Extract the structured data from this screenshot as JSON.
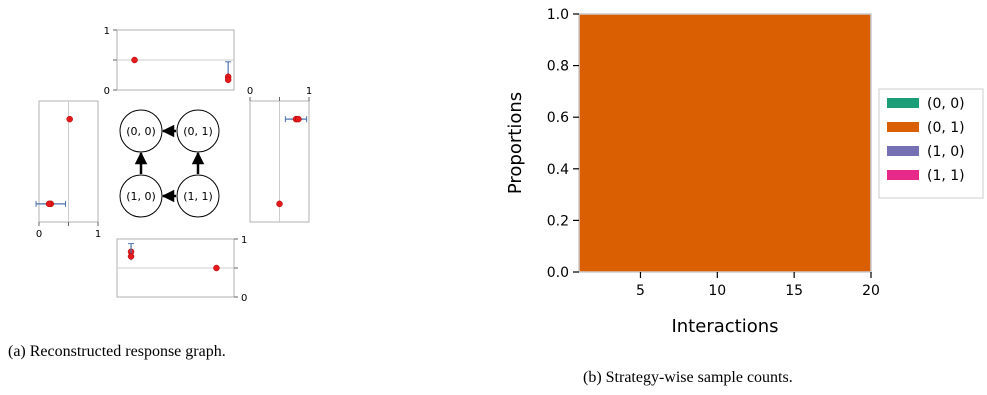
{
  "captions": {
    "a": "(a) Reconstructed response graph.",
    "b": "(b) Strategy-wise sample counts."
  },
  "chart_data": [
    {
      "type": "diagram",
      "nodes": [
        {
          "id": "n00",
          "label": "(0, 0)"
        },
        {
          "id": "n01",
          "label": "(0, 1)"
        },
        {
          "id": "n10",
          "label": "(1, 0)"
        },
        {
          "id": "n11",
          "label": "(1, 1)"
        }
      ],
      "edges": [
        {
          "from": "n01",
          "to": "n00"
        },
        {
          "from": "n10",
          "to": "n00"
        },
        {
          "from": "n11",
          "to": "n10"
        },
        {
          "from": "n11",
          "to": "n01"
        }
      ],
      "mini_plots": {
        "top": {
          "ylim": [
            0,
            1
          ],
          "yticks": [
            "0",
            "1"
          ],
          "ref_line": 0.5,
          "points": [
            {
              "x": 0.15,
              "y": 0.5,
              "err": 0
            },
            {
              "x": 0.95,
              "y": 0.22,
              "err": 0.25
            },
            {
              "x": 0.95,
              "y": 0.17,
              "err": 0
            }
          ]
        },
        "right": {
          "xlim": [
            0,
            1
          ],
          "xticks": [
            "0",
            "1"
          ],
          "ref_line": 0.5,
          "points": [
            {
              "y": 0.85,
              "x": 0.78,
              "err": 0.18
            },
            {
              "y": 0.85,
              "x": 0.82,
              "err": 0
            },
            {
              "y": 0.15,
              "x": 0.5,
              "err": 0
            }
          ]
        },
        "left": {
          "xlim": [
            0,
            1
          ],
          "xticks": [
            "0",
            "1"
          ],
          "ref_line": 0.5,
          "points": [
            {
              "y": 0.85,
              "x": 0.52,
              "err": 0
            },
            {
              "y": 0.15,
              "x": 0.2,
              "err": 0.25
            },
            {
              "y": 0.15,
              "x": 0.17,
              "err": 0
            }
          ]
        },
        "bottom": {
          "ylim": [
            0,
            1
          ],
          "yticks": [
            "0",
            "1"
          ],
          "ref_line": 0.5,
          "points": [
            {
              "x": 0.12,
              "y": 0.78,
              "err": 0
            },
            {
              "x": 0.12,
              "y": 0.7,
              "err": 0.22
            },
            {
              "x": 0.85,
              "y": 0.5,
              "err": 0
            }
          ]
        }
      }
    },
    {
      "type": "area",
      "xlabel": "Interactions",
      "ylabel": "Proportions",
      "xlim": [
        1,
        20
      ],
      "ylim": [
        0,
        1
      ],
      "xticks": [
        5,
        10,
        15,
        20
      ],
      "yticks": [
        "0.0",
        "0.2",
        "0.4",
        "0.6",
        "0.8",
        "1.0"
      ],
      "x": [
        1,
        20
      ],
      "series": [
        {
          "name": "(0, 0)",
          "color": "#1b9e77",
          "values": [
            0,
            0
          ]
        },
        {
          "name": "(0, 1)",
          "color": "#d95f02",
          "values": [
            1,
            1
          ]
        },
        {
          "name": "(1, 0)",
          "color": "#7570b3",
          "values": [
            0,
            0
          ]
        },
        {
          "name": "(1, 1)",
          "color": "#e7298a",
          "values": [
            0,
            0
          ]
        }
      ],
      "legend": "right"
    }
  ]
}
